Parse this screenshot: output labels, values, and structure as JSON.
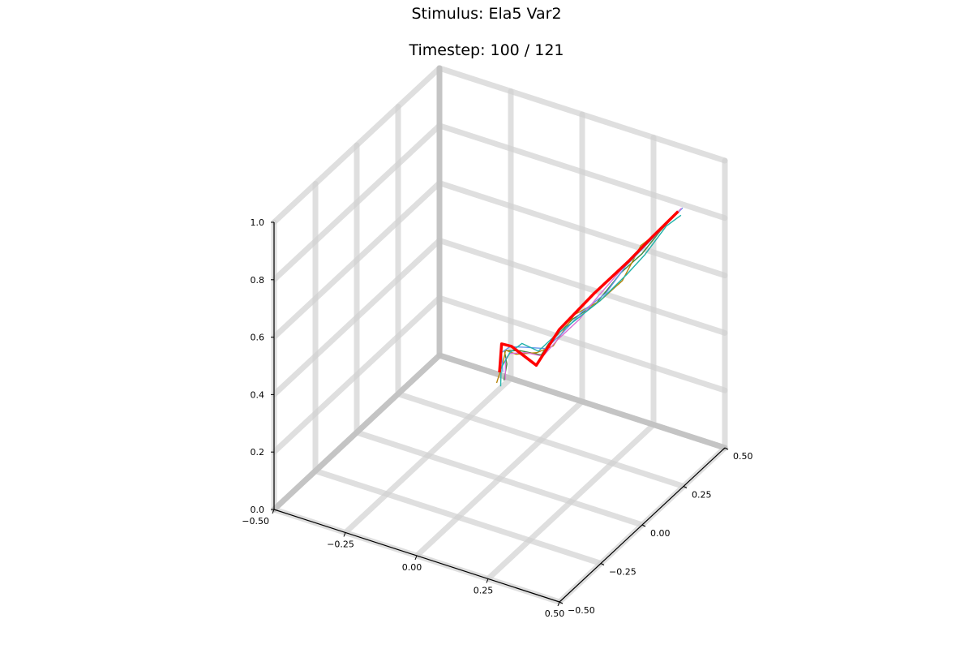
{
  "chart_data": {
    "type": "line",
    "title": "Stimulus: Ela5 Var2",
    "subtitle": "Timestep: 100 / 121",
    "projection": "3d",
    "grid": true,
    "xlim": [
      -0.5,
      0.5
    ],
    "ylim": [
      -0.5,
      0.5
    ],
    "zlim": [
      0.0,
      1.0
    ],
    "x_ticks": [
      "−0.50",
      "−0.25",
      "0.00",
      "0.25",
      "0.50"
    ],
    "y_ticks": [
      "−0.50",
      "−0.25",
      "0.00",
      "0.25",
      "0.50"
    ],
    "z_ticks": [
      "0.0",
      "0.2",
      "0.4",
      "0.6",
      "0.8",
      "1.0"
    ],
    "series": [
      {
        "color": "#ff0000",
        "role": "mean-trajectory",
        "points": [
          [
            0.0,
            0.0,
            0.37
          ],
          [
            -0.01,
            0.03,
            0.45
          ],
          [
            0.03,
            0.02,
            0.46
          ],
          [
            0.1,
            0.05,
            0.4
          ],
          [
            0.14,
            0.12,
            0.5
          ],
          [
            0.21,
            0.21,
            0.6
          ],
          [
            0.29,
            0.28,
            0.7
          ],
          [
            0.34,
            0.33,
            0.77
          ],
          [
            0.4,
            0.39,
            0.85
          ]
        ]
      },
      {
        "color": "#3c8a3c",
        "role": "sample-trajectory",
        "points": [
          [
            0.01,
            0.01,
            0.34
          ],
          [
            0.02,
            0.01,
            0.4
          ],
          [
            0.0,
            0.03,
            0.43
          ],
          [
            0.05,
            0.04,
            0.44
          ],
          [
            0.1,
            0.08,
            0.42
          ],
          [
            0.12,
            0.09,
            0.46
          ],
          [
            0.17,
            0.15,
            0.53
          ],
          [
            0.22,
            0.2,
            0.57
          ],
          [
            0.27,
            0.27,
            0.66
          ],
          [
            0.32,
            0.31,
            0.72
          ],
          [
            0.36,
            0.35,
            0.79
          ],
          [
            0.4,
            0.4,
            0.85
          ]
        ]
      },
      {
        "color": "#b8860b",
        "role": "sample-trajectory",
        "points": [
          [
            -0.01,
            0.0,
            0.33
          ],
          [
            0.0,
            0.02,
            0.39
          ],
          [
            0.01,
            0.02,
            0.44
          ],
          [
            0.04,
            0.03,
            0.43
          ],
          [
            0.09,
            0.07,
            0.43
          ],
          [
            0.13,
            0.1,
            0.45
          ],
          [
            0.17,
            0.16,
            0.54
          ],
          [
            0.23,
            0.21,
            0.58
          ],
          [
            0.28,
            0.26,
            0.64
          ],
          [
            0.31,
            0.32,
            0.74
          ],
          [
            0.36,
            0.36,
            0.79
          ],
          [
            0.39,
            0.39,
            0.84
          ]
        ]
      },
      {
        "color": "#6495ed",
        "role": "sample-trajectory",
        "points": [
          [
            0.0,
            0.02,
            0.36
          ],
          [
            -0.01,
            0.03,
            0.42
          ],
          [
            0.02,
            0.03,
            0.45
          ],
          [
            0.06,
            0.05,
            0.45
          ],
          [
            0.11,
            0.09,
            0.44
          ],
          [
            0.15,
            0.12,
            0.49
          ],
          [
            0.19,
            0.17,
            0.55
          ],
          [
            0.24,
            0.23,
            0.6
          ],
          [
            0.28,
            0.28,
            0.68
          ],
          [
            0.33,
            0.33,
            0.75
          ],
          [
            0.38,
            0.38,
            0.82
          ],
          [
            0.41,
            0.4,
            0.86
          ]
        ]
      },
      {
        "color": "#da70d6",
        "role": "sample-trajectory",
        "points": [
          [
            0.02,
            0.0,
            0.35
          ],
          [
            0.01,
            0.02,
            0.41
          ],
          [
            0.03,
            0.01,
            0.44
          ],
          [
            0.07,
            0.04,
            0.44
          ],
          [
            0.1,
            0.09,
            0.41
          ],
          [
            0.14,
            0.11,
            0.47
          ],
          [
            0.18,
            0.17,
            0.52
          ],
          [
            0.22,
            0.22,
            0.59
          ],
          [
            0.27,
            0.28,
            0.67
          ],
          [
            0.31,
            0.32,
            0.73
          ],
          [
            0.37,
            0.37,
            0.81
          ],
          [
            0.4,
            0.41,
            0.85
          ]
        ]
      },
      {
        "color": "#20b2aa",
        "role": "sample-trajectory",
        "points": [
          [
            0.01,
            -0.01,
            0.33
          ],
          [
            0.0,
            0.01,
            0.38
          ],
          [
            0.02,
            0.03,
            0.43
          ],
          [
            0.05,
            0.05,
            0.46
          ],
          [
            0.09,
            0.08,
            0.43
          ],
          [
            0.13,
            0.11,
            0.48
          ],
          [
            0.18,
            0.15,
            0.53
          ],
          [
            0.23,
            0.21,
            0.58
          ],
          [
            0.29,
            0.27,
            0.66
          ],
          [
            0.33,
            0.31,
            0.72
          ],
          [
            0.37,
            0.37,
            0.8
          ],
          [
            0.41,
            0.39,
            0.84
          ]
        ]
      }
    ]
  }
}
